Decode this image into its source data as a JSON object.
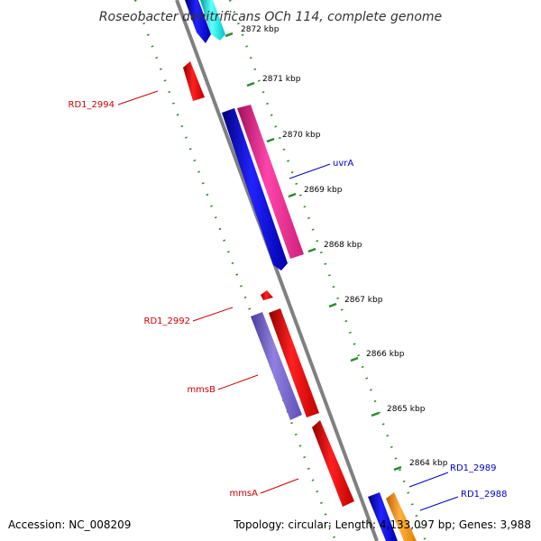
{
  "title": "Roseobacter denitrificans OCh 114, complete genome",
  "footer": {
    "accession": "Accession: NC_008209",
    "summary": "Topology: circular; Length: 4,133,097 bp; Genes: 3,988"
  },
  "colors": {
    "backbone": "#808080",
    "track_dots": "#2a8a2a",
    "forward_label": "#0000cc",
    "reverse_label": "#cc0000"
  },
  "ticks": [
    {
      "label": "2872 kbp"
    },
    {
      "label": "2871 kbp"
    },
    {
      "label": "2870 kbp"
    },
    {
      "label": "2869 kbp"
    },
    {
      "label": "2868 kbp"
    },
    {
      "label": "2867 kbp"
    },
    {
      "label": "2866 kbp"
    },
    {
      "label": "2865 kbp"
    },
    {
      "label": "2864 kbp"
    }
  ],
  "gene_labels": [
    {
      "text": "RD1_2994",
      "strand": "reverse"
    },
    {
      "text": "uvrA",
      "strand": "forward"
    },
    {
      "text": "RD1_2992",
      "strand": "reverse"
    },
    {
      "text": "mmsB",
      "strand": "reverse"
    },
    {
      "text": "mmsA",
      "strand": "reverse"
    },
    {
      "text": "RD1_2989",
      "strand": "forward"
    },
    {
      "text": "RD1_2988",
      "strand": "forward"
    }
  ]
}
